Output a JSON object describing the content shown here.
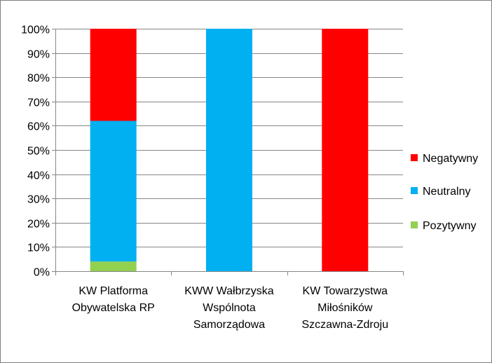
{
  "chart_data": {
    "type": "bar",
    "stacked": true,
    "percent": true,
    "categories": [
      [
        "KW Platforma",
        "Obywatelska RP"
      ],
      [
        "KWW Wałbrzyska",
        "Wspólnota",
        "Samorządowa"
      ],
      [
        "KW Towarzystwa",
        "Miłośników",
        "Szczawna-Zdroju"
      ]
    ],
    "series": [
      {
        "name": "Pozytywny",
        "color": "#92d050",
        "values": [
          4,
          0,
          0
        ]
      },
      {
        "name": "Neutralny",
        "color": "#00b0f0",
        "values": [
          58,
          100,
          0
        ]
      },
      {
        "name": "Negatywny",
        "color": "#ff0000",
        "values": [
          38,
          0,
          100
        ]
      }
    ],
    "ylim": [
      0,
      100
    ],
    "yticks": [
      0,
      10,
      20,
      30,
      40,
      50,
      60,
      70,
      80,
      90,
      100
    ],
    "ytick_suffix": "%",
    "grid": true,
    "legend": {
      "position": "right",
      "order": [
        "Negatywny",
        "Neutralny",
        "Pozytywny"
      ]
    },
    "title": "",
    "xlabel": "",
    "ylabel": ""
  }
}
